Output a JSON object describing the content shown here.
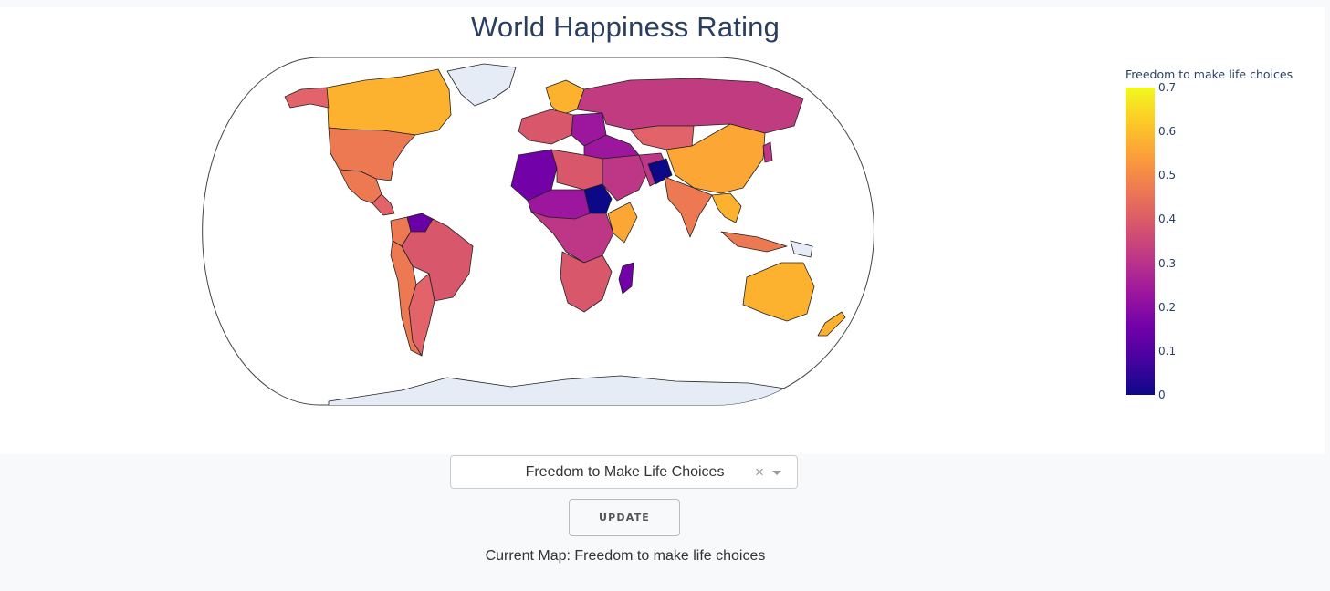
{
  "figure": {
    "title": "World Happiness Rating",
    "colorbar": {
      "title": "Freedom to make life choices",
      "ticks": [
        "0",
        "0.1",
        "0.2",
        "0.3",
        "0.4",
        "0.5",
        "0.6",
        "0.7"
      ],
      "range": [
        0,
        0.7
      ],
      "colorscale": [
        "#0d0887",
        "#46039f",
        "#7201a8",
        "#9c179e",
        "#bd3786",
        "#d8576b",
        "#ed7953",
        "#fb9f3a",
        "#fdca26",
        "#f0f921"
      ]
    },
    "colors": {
      "ocean": "#ffffff",
      "land_no_data": "#e5ecf6",
      "border": "#444444",
      "title_text": "#2a3f5f"
    }
  },
  "controls": {
    "dropdown": {
      "selected": "Freedom to Make Life Choices"
    },
    "update_button": {
      "label": "UPDATE"
    },
    "status": {
      "text": "Current Map: Freedom to make life choices"
    }
  }
}
